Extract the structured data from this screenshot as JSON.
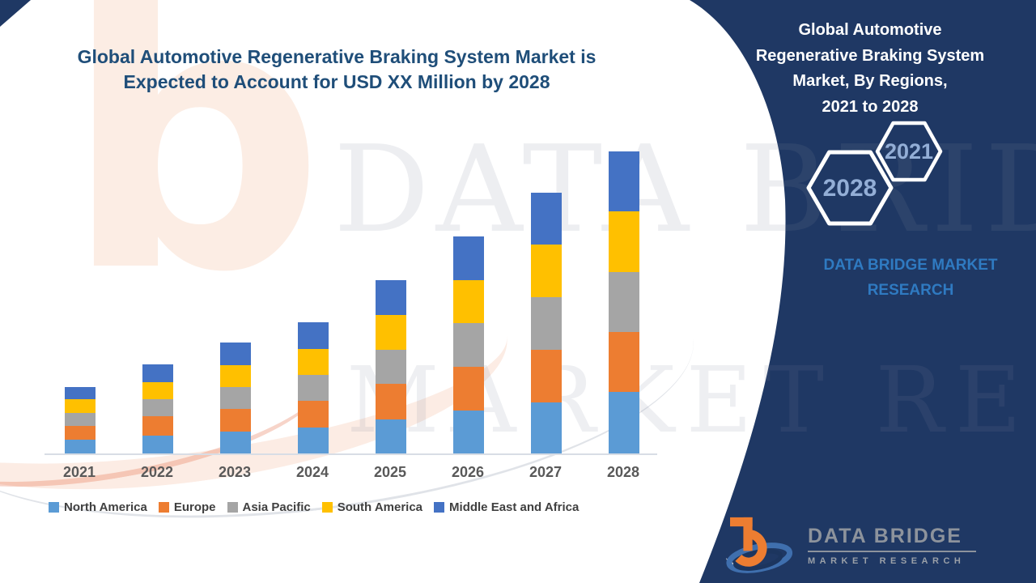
{
  "title": {
    "line1": "Global Automotive Regenerative Braking System Market is",
    "line2": "Expected to Account for USD XX Million by 2028"
  },
  "side_panel": {
    "bg_color": "#1f3864",
    "title_lines": [
      "Global Automotive",
      "Regenerative Braking System",
      "Market, By Regions,",
      "2021 to 2028"
    ],
    "hexagons": [
      {
        "label": "2021"
      },
      {
        "label": "2028"
      }
    ],
    "brand_caption_line1": "DATA BRIDGE MARKET",
    "brand_caption_line2": "RESEARCH",
    "caption_color": "#2f7ac1",
    "hex_text_color": "#93aed6"
  },
  "logo": {
    "name": "DATA BRIDGE",
    "subtitle": "MARKET RESEARCH",
    "b_color": "#ED7D31",
    "swoosh_color": "#3f6fae"
  },
  "watermark": {
    "letter": "b",
    "line1": "DATA BRIDGE",
    "line2": "MARKET RESEARCH"
  },
  "chart_data": {
    "type": "bar",
    "stacked": true,
    "title": "Global Automotive Regenerative Braking System Market, By Regions, 2021 to 2028",
    "xlabel": "",
    "ylabel": "",
    "units": "USD Million (exact values masked as XX in source image)",
    "value_axis_visible": false,
    "grid": false,
    "legend_position": "bottom",
    "ylim": [
      0,
      380
    ],
    "categories": [
      "2021",
      "2022",
      "2023",
      "2024",
      "2025",
      "2026",
      "2027",
      "2028"
    ],
    "series": [
      {
        "name": "North America",
        "color": "#5B9BD5",
        "values": [
          17,
          22,
          27,
          32,
          42,
          53,
          63,
          76
        ]
      },
      {
        "name": "Europe",
        "color": "#ED7D31",
        "values": [
          17,
          24,
          28,
          33,
          44,
          54,
          65,
          74
        ]
      },
      {
        "name": "Asia Pacific",
        "color": "#A5A5A5",
        "values": [
          16,
          21,
          27,
          32,
          42,
          54,
          65,
          74
        ]
      },
      {
        "name": "South America",
        "color": "#FFC000",
        "values": [
          17,
          21,
          27,
          32,
          43,
          53,
          65,
          75
        ]
      },
      {
        "name": "Middle East and Africa",
        "color": "#4472C4",
        "values": [
          15,
          22,
          28,
          33,
          43,
          54,
          64,
          74
        ]
      }
    ],
    "totals": [
      82,
      110,
      137,
      162,
      214,
      268,
      322,
      373
    ]
  }
}
